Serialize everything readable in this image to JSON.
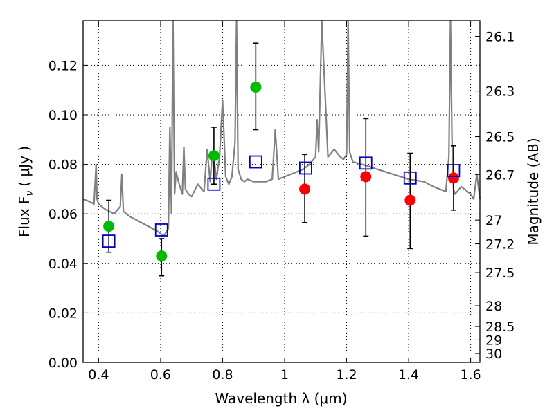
{
  "chart_data": {
    "type": "scatter",
    "xlabel": "Wavelength  λ (μm)",
    "ylabel": "Flux  F",
    "ylabel_sub": "ν",
    "ylabel_unit": "( μJy )",
    "ylabel_right": "Magnitude (AB)",
    "xlim": [
      0.35,
      1.63
    ],
    "ylim": [
      0.0,
      0.138
    ],
    "grid": true,
    "x_ticks": [
      0.4,
      0.6,
      0.8,
      1.0,
      1.2,
      1.4,
      1.6
    ],
    "x_tick_labels": [
      "0.4",
      "0.6",
      "0.8",
      "1",
      "1.2",
      "1.4",
      "1.6"
    ],
    "y_ticks": [
      0.0,
      0.02,
      0.04,
      0.06,
      0.08,
      0.1,
      0.12
    ],
    "y_tick_labels": [
      "0.00",
      "0.02",
      "0.04",
      "0.06",
      "0.08",
      "0.10",
      "0.12"
    ],
    "right_ticks": [
      {
        "label": "26.1",
        "flux": 0.1317
      },
      {
        "label": "26.3",
        "flux": 0.1096
      },
      {
        "label": "26.5",
        "flux": 0.0912
      },
      {
        "label": "26.7",
        "flux": 0.0759
      },
      {
        "label": "27",
        "flux": 0.0575
      },
      {
        "label": "27.2",
        "flux": 0.0479
      },
      {
        "label": "27.5",
        "flux": 0.0363
      },
      {
        "label": "28",
        "flux": 0.0229
      },
      {
        "label": "28.5",
        "flux": 0.0145
      },
      {
        "label": "29",
        "flux": 0.0091
      },
      {
        "label": "30",
        "flux": 0.0036
      }
    ],
    "series": [
      {
        "kind": "line",
        "color": "#808080",
        "x": [
          0.35,
          0.37,
          0.385,
          0.392,
          0.395,
          0.4,
          0.42,
          0.45,
          0.47,
          0.475,
          0.48,
          0.5,
          0.53,
          0.56,
          0.59,
          0.6,
          0.61,
          0.625,
          0.63,
          0.635,
          0.64,
          0.645,
          0.65,
          0.66,
          0.67,
          0.675,
          0.68,
          0.69,
          0.7,
          0.72,
          0.74,
          0.75,
          0.76,
          0.765,
          0.77,
          0.78,
          0.79,
          0.8,
          0.81,
          0.82,
          0.83,
          0.84,
          0.845,
          0.85,
          0.86,
          0.87,
          0.88,
          0.9,
          0.92,
          0.94,
          0.96,
          0.97,
          0.98,
          1.0,
          1.02,
          1.04,
          1.06,
          1.08,
          1.1,
          1.105,
          1.11,
          1.12,
          1.14,
          1.16,
          1.18,
          1.19,
          1.2,
          1.205,
          1.21,
          1.22,
          1.25,
          1.3,
          1.35,
          1.4,
          1.45,
          1.48,
          1.5,
          1.52,
          1.53,
          1.535,
          1.54,
          1.545,
          1.55,
          1.57,
          1.59,
          1.6,
          1.61,
          1.62,
          1.63
        ],
        "y": [
          0.066,
          0.065,
          0.064,
          0.08,
          0.066,
          0.064,
          0.062,
          0.06,
          0.063,
          0.076,
          0.061,
          0.059,
          0.057,
          0.055,
          0.053,
          0.052,
          0.051,
          0.054,
          0.095,
          0.06,
          0.14,
          0.068,
          0.077,
          0.072,
          0.068,
          0.087,
          0.07,
          0.068,
          0.067,
          0.072,
          0.069,
          0.086,
          0.073,
          0.082,
          0.085,
          0.074,
          0.083,
          0.106,
          0.075,
          0.072,
          0.075,
          0.089,
          0.14,
          0.078,
          0.074,
          0.073,
          0.074,
          0.073,
          0.073,
          0.073,
          0.074,
          0.094,
          0.074,
          0.075,
          0.076,
          0.077,
          0.078,
          0.08,
          0.083,
          0.098,
          0.085,
          0.14,
          0.083,
          0.086,
          0.083,
          0.082,
          0.084,
          0.14,
          0.085,
          0.081,
          0.08,
          0.078,
          0.076,
          0.074,
          0.073,
          0.071,
          0.07,
          0.069,
          0.083,
          0.14,
          0.09,
          0.07,
          0.068,
          0.071,
          0.069,
          0.068,
          0.066,
          0.076,
          0.066
        ]
      },
      {
        "kind": "scatter",
        "marker": "circle",
        "color": "#00bb00",
        "x": [
          0.433,
          0.603,
          0.772,
          0.907
        ],
        "y": [
          0.055,
          0.043,
          0.0835,
          0.1112
        ],
        "yerr_low": [
          0.0445,
          0.035,
          0.072,
          0.094
        ],
        "yerr_high": [
          0.0655,
          0.05,
          0.095,
          0.129
        ]
      },
      {
        "kind": "scatter",
        "marker": "circle",
        "color": "#ff0000",
        "x": [
          1.065,
          1.262,
          1.405,
          1.545
        ],
        "y": [
          0.07,
          0.075,
          0.0655,
          0.0745
        ],
        "yerr_low": [
          0.0565,
          0.051,
          0.046,
          0.0615
        ],
        "yerr_high": [
          0.084,
          0.0985,
          0.0845,
          0.0875
        ]
      },
      {
        "kind": "scatter",
        "marker": "square",
        "color": "#0000cc",
        "x": [
          0.433,
          0.603,
          0.772,
          0.907,
          1.068,
          1.262,
          1.405,
          1.545
        ],
        "y": [
          0.049,
          0.0535,
          0.072,
          0.081,
          0.0785,
          0.0805,
          0.0745,
          0.0775
        ]
      }
    ]
  }
}
